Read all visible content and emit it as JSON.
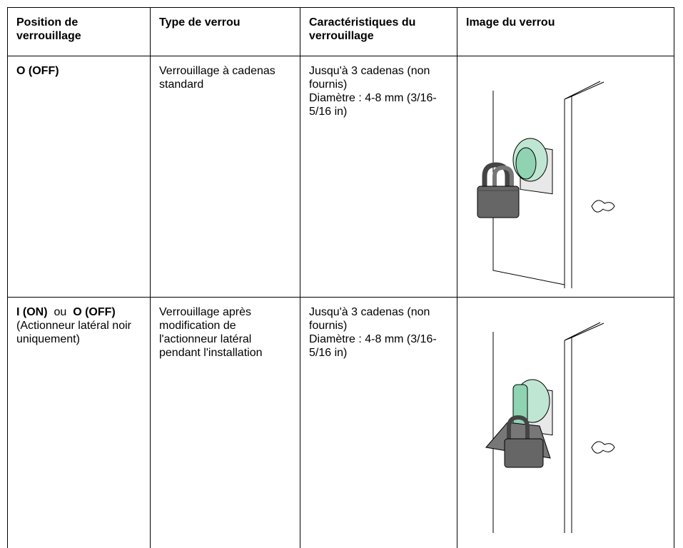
{
  "table": {
    "headers": [
      "Position de verrouillage",
      "Type de verrou",
      "Caractéristiques du verrouillage",
      "Image du verrou"
    ],
    "rows": [
      {
        "position": [
          {
            "text": "O (OFF)",
            "bold": true
          }
        ],
        "type": "Verrouillage à cadenas standard",
        "characteristics": [
          "Jusqu'à 3 cadenas (non fournis)",
          "Diamètre : 4-8 mm (3/16-5/16 in)"
        ]
      },
      {
        "position": [
          {
            "text": "I (ON)",
            "bold": true
          },
          {
            "text": "ou",
            "bold": false
          },
          {
            "text": "O (OFF)",
            "bold": true
          },
          {
            "text": "(Actionneur latéral noir uniquement)",
            "bold": false
          }
        ],
        "type": "Verrouillage après modification de l'actionneur latéral pendant l'installation",
        "characteristics": [
          "Jusqu'à 3 cadenas (non fournis)",
          "Diamètre : 4-8 mm (3/16-5/16 in)"
        ]
      }
    ]
  }
}
